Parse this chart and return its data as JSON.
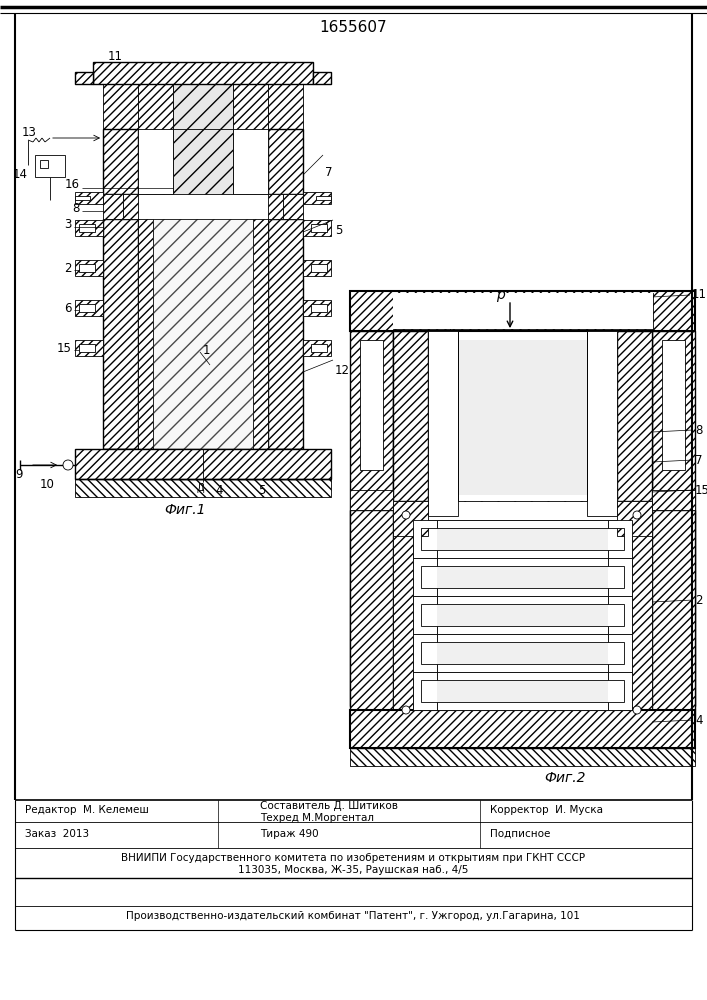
{
  "patent_number": "1655607",
  "bg": "#ffffff",
  "lc": "#000000",
  "fig1_caption": "Фиг.1",
  "fig2_caption": "Фиг.2",
  "footer_editor": "Редактор  М. Келемеш",
  "footer_composer": "Составитель Д. Шитиков",
  "footer_techred": "Техред М.Моргентал",
  "footer_corrector": "Корректор  И. Муска",
  "footer_order": "Заказ  2013",
  "footer_tirage": "Тираж 490",
  "footer_podp": "Подписное",
  "footer_vniip1": "ВНИИПИ Государственного комитета по изобретениям и открытиям при ГКНТ СССР",
  "footer_vniip2": "113035, Москва, Ж-35, Раушская наб., 4/5",
  "footer_patent": "Производственно-издательский комбинат \"Патент\", г. Ужгород, ул.Гагарина, 101"
}
